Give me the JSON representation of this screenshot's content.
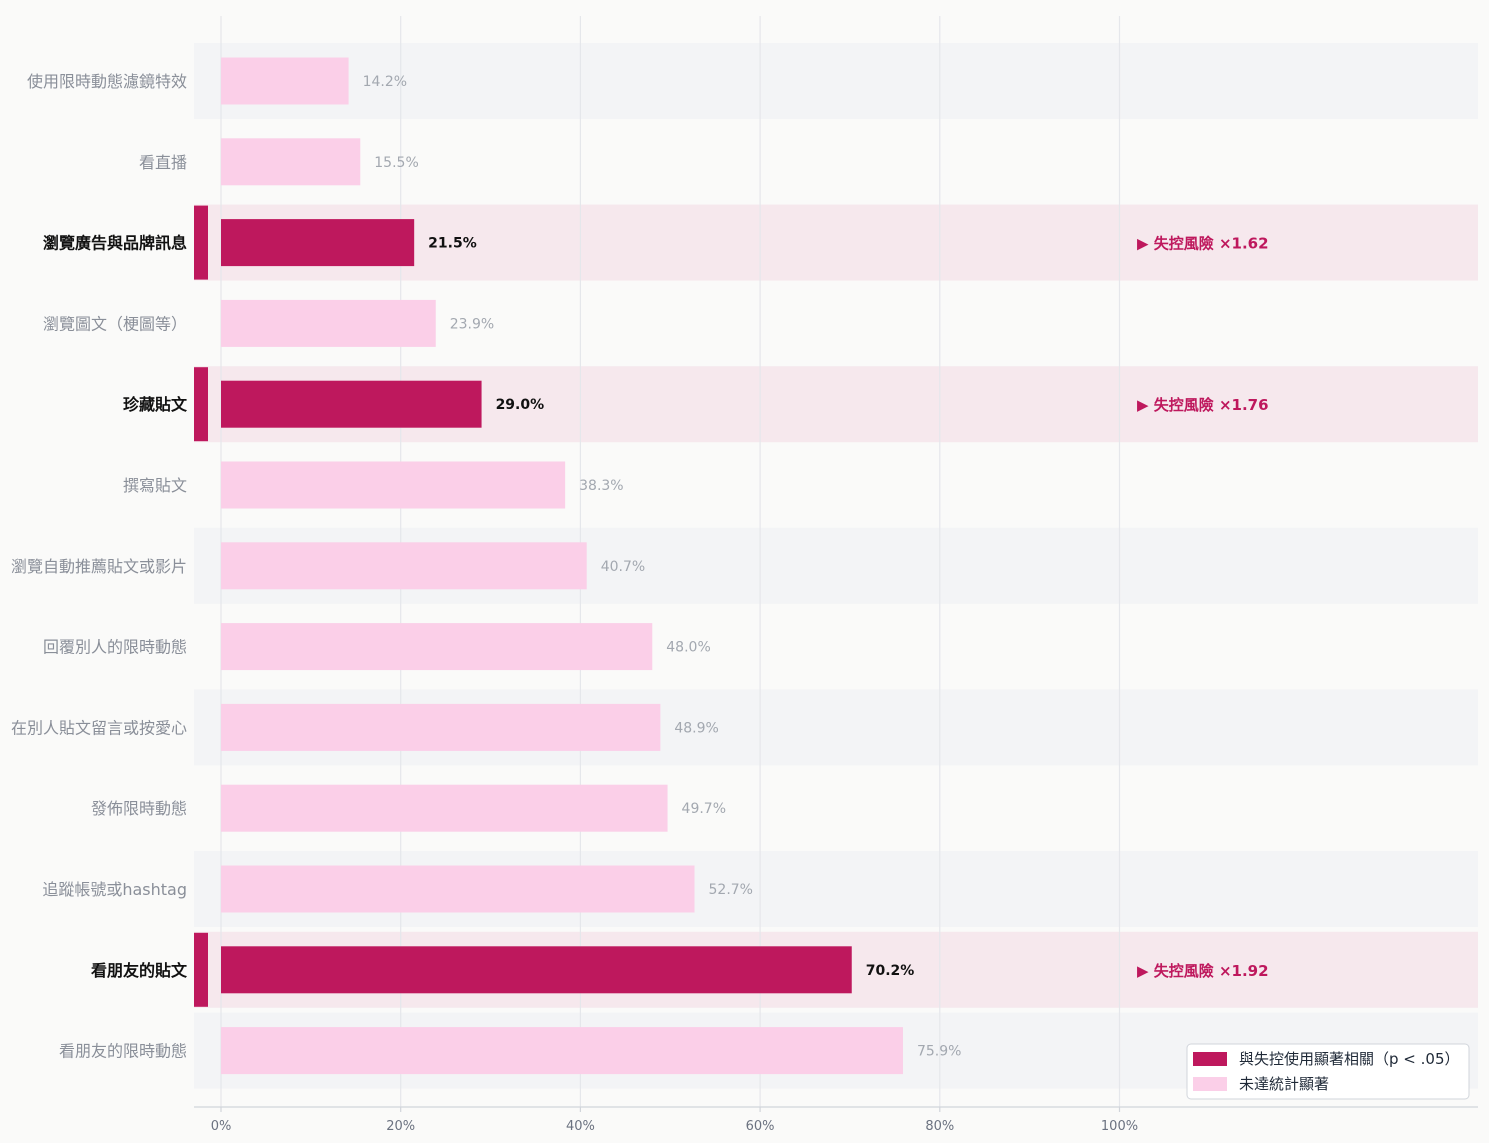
{
  "colors": {
    "significant": "#be185d",
    "not_significant": "#fbcfe8",
    "row_band": "#f3f4f6",
    "row_band_significant": "#f6e8ed",
    "grid": "#e5e7eb",
    "axis": "#d1d5db"
  },
  "chart_data": {
    "type": "bar",
    "orientation": "horizontal",
    "xlim": [
      0,
      100
    ],
    "ticks": [
      0,
      20,
      40,
      60,
      80,
      100
    ],
    "tick_labels": [
      "0%",
      "20%",
      "40%",
      "60%",
      "80%",
      "100%"
    ],
    "grid": true,
    "legend_position": "bottom-right",
    "legend": {
      "significant": "與失控使用顯著相關（p < .05）",
      "not_significant": "未達統計顯著"
    },
    "bars": [
      {
        "category": "使用限時動態濾鏡特效",
        "value": 14.2,
        "label": "14.2%",
        "significant": false,
        "risk": ""
      },
      {
        "category": "看直播",
        "value": 15.5,
        "label": "15.5%",
        "significant": false,
        "risk": ""
      },
      {
        "category": "瀏覽廣告與品牌訊息",
        "value": 21.5,
        "label": "21.5%",
        "significant": true,
        "risk": "▶ 失控風險 ×1.62"
      },
      {
        "category": "瀏覽圖文（梗圖等）",
        "value": 23.9,
        "label": "23.9%",
        "significant": false,
        "risk": ""
      },
      {
        "category": "珍藏貼文",
        "value": 29.0,
        "label": "29.0%",
        "significant": true,
        "risk": "▶ 失控風險 ×1.76"
      },
      {
        "category": "撰寫貼文",
        "value": 38.3,
        "label": "38.3%",
        "significant": false,
        "risk": ""
      },
      {
        "category": "瀏覽自動推薦貼文或影片",
        "value": 40.7,
        "label": "40.7%",
        "significant": false,
        "risk": ""
      },
      {
        "category": "回覆別人的限時動態",
        "value": 48.0,
        "label": "48.0%",
        "significant": false,
        "risk": ""
      },
      {
        "category": "在別人貼文留言或按愛心",
        "value": 48.9,
        "label": "48.9%",
        "significant": false,
        "risk": ""
      },
      {
        "category": "發佈限時動態",
        "value": 49.7,
        "label": "49.7%",
        "significant": false,
        "risk": ""
      },
      {
        "category": "追蹤帳號或hashtag",
        "value": 52.7,
        "label": "52.7%",
        "significant": false,
        "risk": ""
      },
      {
        "category": "看朋友的貼文",
        "value": 70.2,
        "label": "70.2%",
        "significant": true,
        "risk": "▶ 失控風險 ×1.92"
      },
      {
        "category": "看朋友的限時動態",
        "value": 75.9,
        "label": "75.9%",
        "significant": false,
        "risk": ""
      }
    ]
  }
}
